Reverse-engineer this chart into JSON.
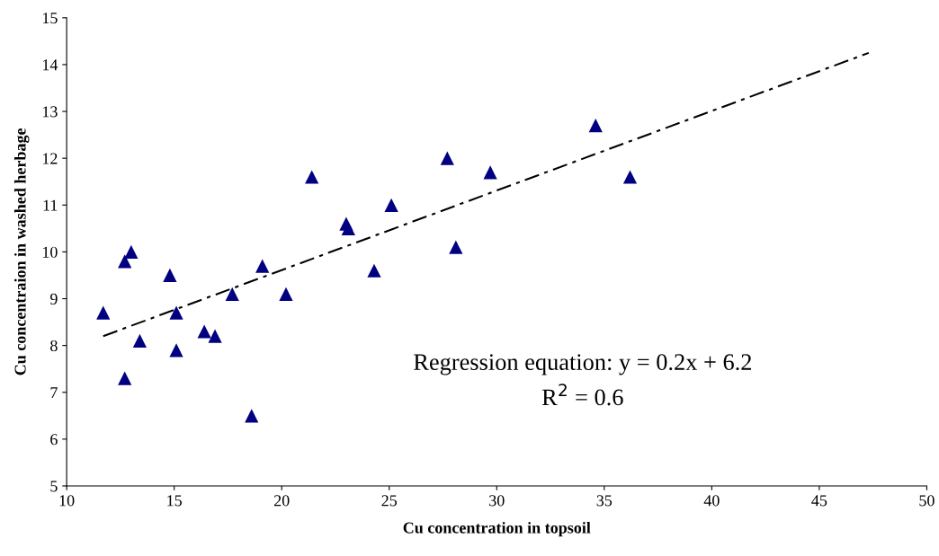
{
  "chart_data": {
    "type": "scatter",
    "xlabel": "Cu concentration in topsoil",
    "ylabel": "Cu concentraion in washed herbage",
    "xlim": [
      10,
      50
    ],
    "xticks": [
      10,
      15,
      20,
      25,
      30,
      35,
      40,
      45,
      50
    ],
    "ylim": [
      5,
      15
    ],
    "yticks": [
      5,
      6,
      7,
      8,
      9,
      10,
      11,
      12,
      13,
      14,
      15
    ],
    "grid": false,
    "legend": false,
    "marker": "triangle",
    "series": [
      {
        "color": "#000080",
        "x": [
          11.7,
          12.7,
          13.0,
          12.7,
          13.4,
          14.8,
          15.1,
          15.1,
          16.4,
          16.9,
          17.7,
          18.6,
          19.1,
          20.2,
          21.4,
          23.0,
          23.1,
          24.3,
          25.1,
          27.7,
          28.1,
          29.7,
          34.6,
          36.2
        ],
        "values": [
          8.7,
          9.8,
          10.0,
          7.3,
          8.1,
          9.5,
          8.7,
          7.9,
          8.3,
          8.2,
          9.1,
          6.5,
          9.7,
          9.1,
          11.6,
          10.6,
          10.5,
          9.6,
          11.0,
          12.0,
          10.1,
          11.7,
          12.7,
          11.6
        ]
      },
      {
        "type": "line",
        "color": "#000000",
        "line_style": "dashed",
        "marker": "none",
        "x": [
          11.7,
          47.3
        ],
        "values": [
          8.2,
          14.25
        ]
      }
    ],
    "annotations": [
      "Regression equation: y = 0.2x + 6.2",
      "R$^{2}$ = 0.6"
    ]
  }
}
